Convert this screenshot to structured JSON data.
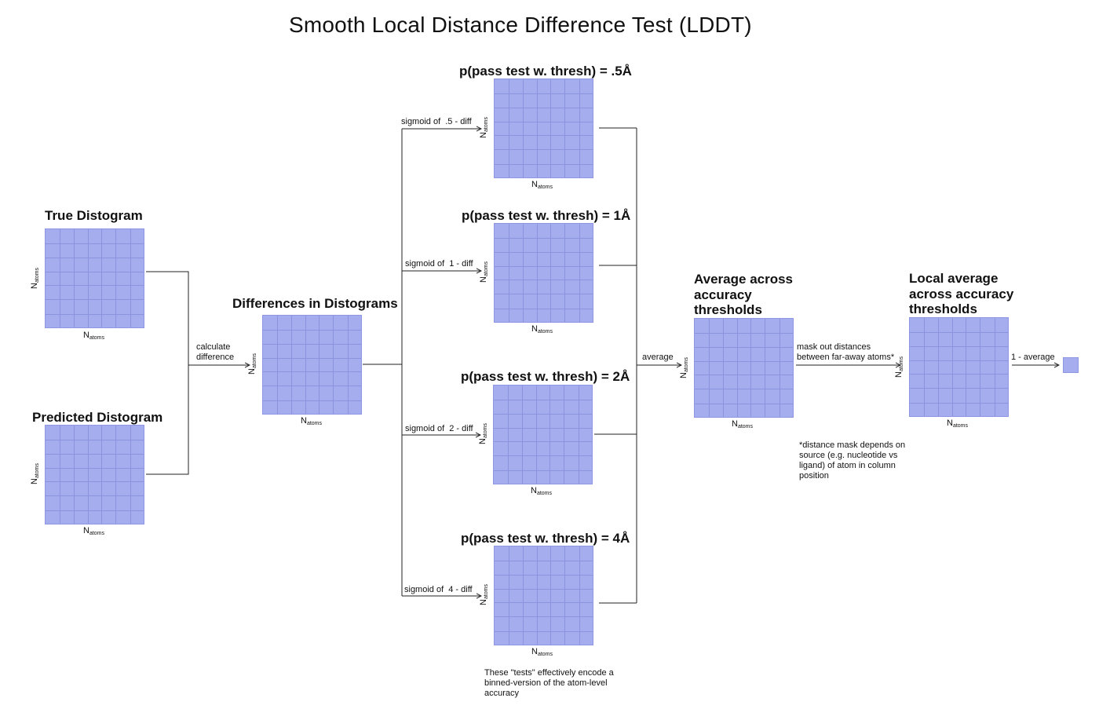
{
  "title": "Smooth Local Distance Difference Test (LDDT)",
  "axis": {
    "n": "N",
    "sub": "atoms"
  },
  "colors": {
    "grid_fill": "#a5adef",
    "grid_line": "#8a93de",
    "wire": "#222222"
  },
  "boxes": {
    "true_distogram": "True Distogram",
    "predicted_distogram": "Predicted Distogram",
    "differences": "Differences in Distograms",
    "pass_05": "p(pass test w. thresh) = .5Å",
    "pass_1": "p(pass test w. thresh) = 1Å",
    "pass_2": "p(pass test w. thresh) = 2Å",
    "pass_4": "p(pass test w. thresh) = 4Å",
    "average": [
      "Average across",
      "accuracy",
      "thresholds"
    ],
    "local_average": [
      "Local average",
      "across accuracy",
      "thresholds"
    ]
  },
  "edges": {
    "calculate_difference": [
      "calculate",
      "difference"
    ],
    "sigmoid_05": "sigmoid of  .5 - diff",
    "sigmoid_1": "sigmoid of  1 - diff",
    "sigmoid_2": "sigmoid of  2 - diff",
    "sigmoid_4": "sigmoid of  4 - diff",
    "average": "average",
    "mask": [
      "mask out distances",
      "between far-away atoms*"
    ],
    "one_minus_average": "1 - average"
  },
  "notes": {
    "distance_mask": "*distance mask depends on source (e.g. nucleotide vs ligand) of atom in column position",
    "tests_encode": "These \"tests\" effectively encode a binned-version of the atom-level accuracy"
  }
}
